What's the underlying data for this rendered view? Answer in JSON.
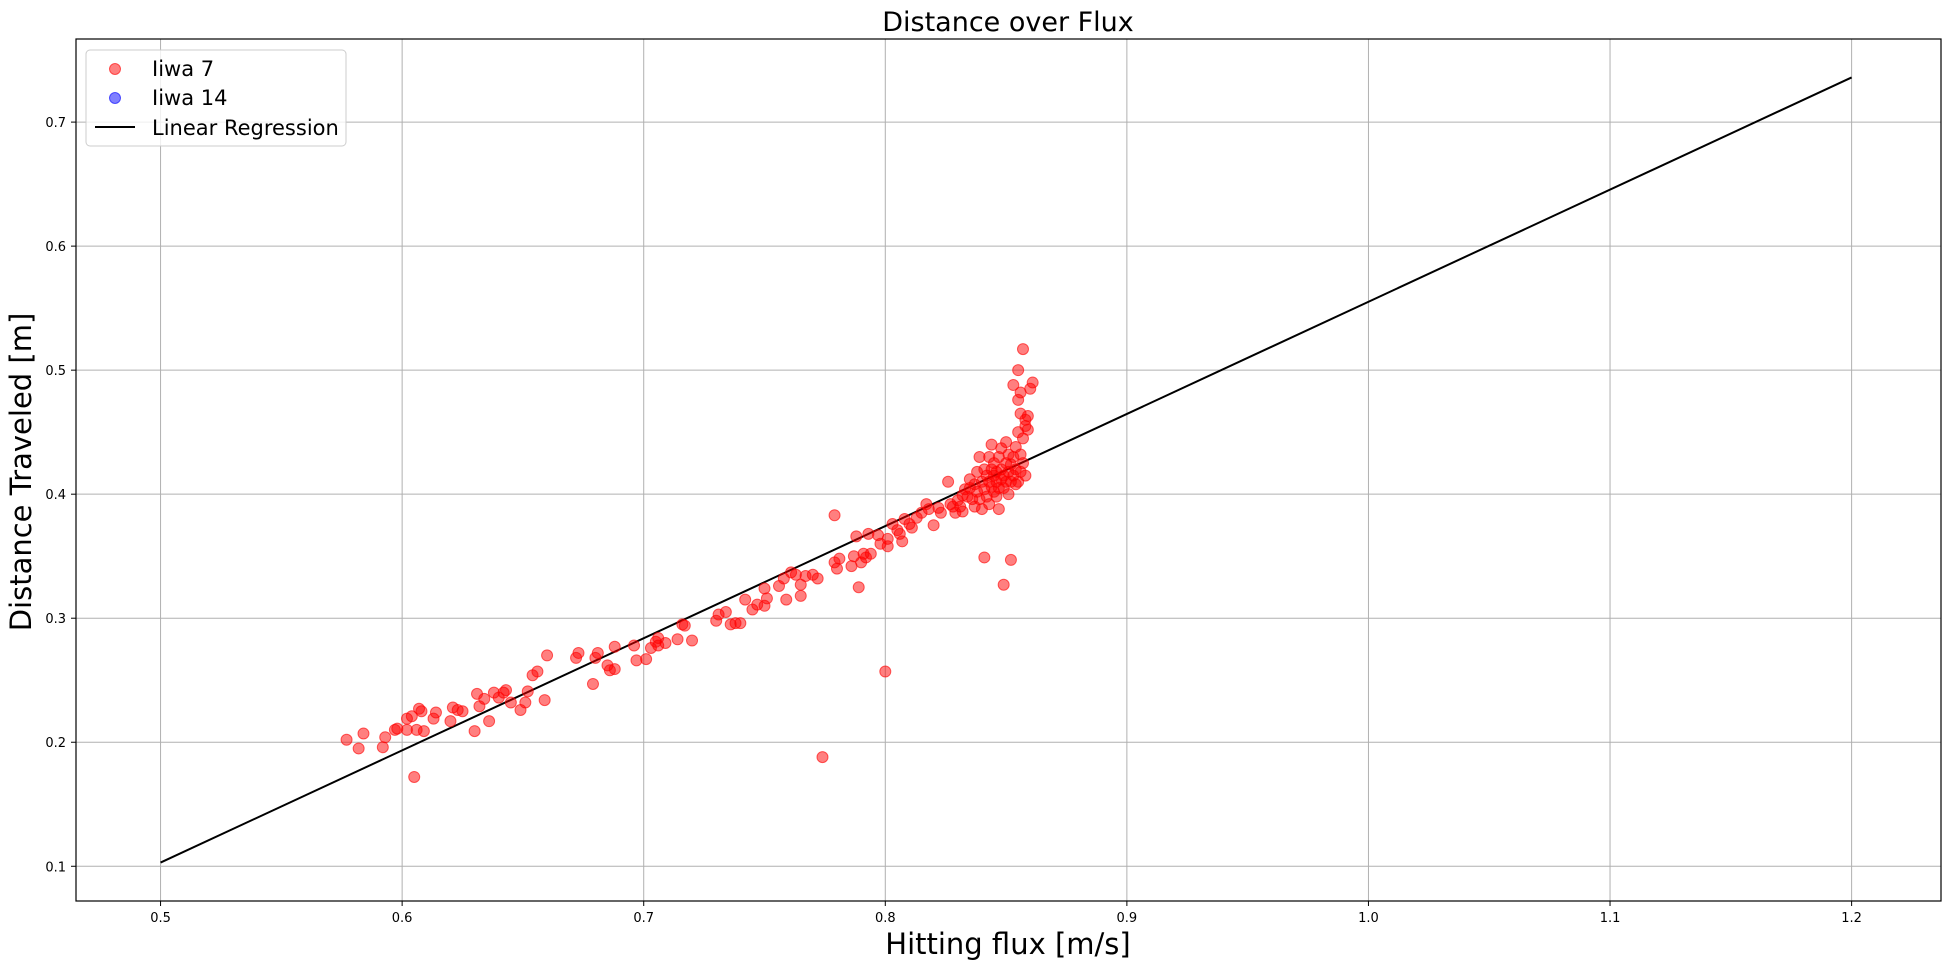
{
  "chart_data": {
    "type": "scatter",
    "title": "Distance over Flux",
    "xlabel": "Hitting flux [m/s]",
    "ylabel": "Distance Traveled [m]",
    "xlim": [
      0.465,
      1.237
    ],
    "ylim": [
      0.072,
      0.767
    ],
    "xticks": [
      "0.5",
      "0.6",
      "0.7",
      "0.8",
      "0.9",
      "1.0",
      "1.1",
      "1.2"
    ],
    "yticks": [
      "0.1",
      "0.2",
      "0.3",
      "0.4",
      "0.5",
      "0.6",
      "0.7"
    ],
    "grid": true,
    "legend_position": "top-left",
    "legend": [
      {
        "label": "Iiwa 7",
        "kind": "marker",
        "color": "#ff0000"
      },
      {
        "label": "Iiwa 14",
        "kind": "marker",
        "color": "#0000ff"
      },
      {
        "label": "Linear Regression",
        "kind": "line",
        "color": "#000000"
      }
    ],
    "series": [
      {
        "name": "Iiwa 7",
        "color": "#ff0000",
        "points": [
          [
            0.577,
            0.202
          ],
          [
            0.582,
            0.195
          ],
          [
            0.584,
            0.207
          ],
          [
            0.592,
            0.196
          ],
          [
            0.593,
            0.204
          ],
          [
            0.597,
            0.21
          ],
          [
            0.598,
            0.211
          ],
          [
            0.602,
            0.21
          ],
          [
            0.602,
            0.219
          ],
          [
            0.604,
            0.221
          ],
          [
            0.605,
            0.172
          ],
          [
            0.606,
            0.21
          ],
          [
            0.607,
            0.227
          ],
          [
            0.608,
            0.225
          ],
          [
            0.609,
            0.209
          ],
          [
            0.613,
            0.219
          ],
          [
            0.614,
            0.224
          ],
          [
            0.62,
            0.217
          ],
          [
            0.621,
            0.228
          ],
          [
            0.623,
            0.226
          ],
          [
            0.625,
            0.225
          ],
          [
            0.63,
            0.209
          ],
          [
            0.631,
            0.239
          ],
          [
            0.632,
            0.229
          ],
          [
            0.634,
            0.235
          ],
          [
            0.636,
            0.217
          ],
          [
            0.638,
            0.24
          ],
          [
            0.64,
            0.236
          ],
          [
            0.642,
            0.24
          ],
          [
            0.643,
            0.242
          ],
          [
            0.645,
            0.232
          ],
          [
            0.649,
            0.226
          ],
          [
            0.651,
            0.232
          ],
          [
            0.652,
            0.241
          ],
          [
            0.654,
            0.254
          ],
          [
            0.656,
            0.257
          ],
          [
            0.659,
            0.234
          ],
          [
            0.66,
            0.27
          ],
          [
            0.672,
            0.268
          ],
          [
            0.673,
            0.272
          ],
          [
            0.679,
            0.247
          ],
          [
            0.68,
            0.268
          ],
          [
            0.681,
            0.272
          ],
          [
            0.685,
            0.262
          ],
          [
            0.686,
            0.258
          ],
          [
            0.688,
            0.277
          ],
          [
            0.688,
            0.259
          ],
          [
            0.696,
            0.278
          ],
          [
            0.697,
            0.266
          ],
          [
            0.701,
            0.267
          ],
          [
            0.703,
            0.276
          ],
          [
            0.705,
            0.281
          ],
          [
            0.706,
            0.284
          ],
          [
            0.706,
            0.278
          ],
          [
            0.709,
            0.28
          ],
          [
            0.714,
            0.283
          ],
          [
            0.716,
            0.295
          ],
          [
            0.717,
            0.294
          ],
          [
            0.72,
            0.282
          ],
          [
            0.73,
            0.298
          ],
          [
            0.731,
            0.303
          ],
          [
            0.734,
            0.305
          ],
          [
            0.736,
            0.295
          ],
          [
            0.738,
            0.296
          ],
          [
            0.74,
            0.296
          ],
          [
            0.742,
            0.315
          ],
          [
            0.745,
            0.307
          ],
          [
            0.747,
            0.311
          ],
          [
            0.75,
            0.31
          ],
          [
            0.75,
            0.324
          ],
          [
            0.751,
            0.316
          ],
          [
            0.756,
            0.326
          ],
          [
            0.758,
            0.332
          ],
          [
            0.759,
            0.315
          ],
          [
            0.761,
            0.337
          ],
          [
            0.763,
            0.335
          ],
          [
            0.765,
            0.318
          ],
          [
            0.765,
            0.327
          ],
          [
            0.767,
            0.334
          ],
          [
            0.77,
            0.335
          ],
          [
            0.772,
            0.332
          ],
          [
            0.774,
            0.188
          ],
          [
            0.779,
            0.383
          ],
          [
            0.779,
            0.345
          ],
          [
            0.78,
            0.34
          ],
          [
            0.781,
            0.348
          ],
          [
            0.786,
            0.342
          ],
          [
            0.787,
            0.35
          ],
          [
            0.788,
            0.366
          ],
          [
            0.789,
            0.325
          ],
          [
            0.79,
            0.345
          ],
          [
            0.791,
            0.352
          ],
          [
            0.792,
            0.349
          ],
          [
            0.793,
            0.368
          ],
          [
            0.794,
            0.352
          ],
          [
            0.797,
            0.367
          ],
          [
            0.798,
            0.36
          ],
          [
            0.8,
            0.257
          ],
          [
            0.801,
            0.358
          ],
          [
            0.801,
            0.364
          ],
          [
            0.803,
            0.376
          ],
          [
            0.805,
            0.371
          ],
          [
            0.806,
            0.368
          ],
          [
            0.807,
            0.362
          ],
          [
            0.808,
            0.38
          ],
          [
            0.81,
            0.376
          ],
          [
            0.811,
            0.373
          ],
          [
            0.813,
            0.381
          ],
          [
            0.815,
            0.385
          ],
          [
            0.817,
            0.392
          ],
          [
            0.818,
            0.388
          ],
          [
            0.82,
            0.375
          ],
          [
            0.822,
            0.389
          ],
          [
            0.823,
            0.385
          ],
          [
            0.826,
            0.41
          ],
          [
            0.827,
            0.392
          ],
          [
            0.828,
            0.39
          ],
          [
            0.829,
            0.385
          ],
          [
            0.83,
            0.395
          ],
          [
            0.831,
            0.39
          ],
          [
            0.832,
            0.386
          ],
          [
            0.832,
            0.399
          ],
          [
            0.833,
            0.404
          ],
          [
            0.834,
            0.398
          ],
          [
            0.835,
            0.405
          ],
          [
            0.835,
            0.412
          ],
          [
            0.836,
            0.396
          ],
          [
            0.837,
            0.39
          ],
          [
            0.837,
            0.408
          ],
          [
            0.838,
            0.402
          ],
          [
            0.838,
            0.418
          ],
          [
            0.839,
            0.396
          ],
          [
            0.839,
            0.43
          ],
          [
            0.84,
            0.41
          ],
          [
            0.84,
            0.388
          ],
          [
            0.841,
            0.404
          ],
          [
            0.841,
            0.42
          ],
          [
            0.841,
            0.349
          ],
          [
            0.842,
            0.398
          ],
          [
            0.842,
            0.415
          ],
          [
            0.843,
            0.41
          ],
          [
            0.843,
            0.43
          ],
          [
            0.843,
            0.392
          ],
          [
            0.844,
            0.406
          ],
          [
            0.844,
            0.42
          ],
          [
            0.844,
            0.44
          ],
          [
            0.845,
            0.402
          ],
          [
            0.845,
            0.415
          ],
          [
            0.845,
            0.425
          ],
          [
            0.846,
            0.398
          ],
          [
            0.846,
            0.41
          ],
          [
            0.846,
            0.418
          ],
          [
            0.847,
            0.405
          ],
          [
            0.847,
            0.43
          ],
          [
            0.847,
            0.388
          ],
          [
            0.848,
            0.412
          ],
          [
            0.848,
            0.42
          ],
          [
            0.848,
            0.437
          ],
          [
            0.849,
            0.405
          ],
          [
            0.849,
            0.415
          ],
          [
            0.849,
            0.327
          ],
          [
            0.85,
            0.41
          ],
          [
            0.85,
            0.425
          ],
          [
            0.85,
            0.442
          ],
          [
            0.851,
            0.4
          ],
          [
            0.851,
            0.418
          ],
          [
            0.851,
            0.432
          ],
          [
            0.852,
            0.41
          ],
          [
            0.852,
            0.424
          ],
          [
            0.852,
            0.347
          ],
          [
            0.853,
            0.415
          ],
          [
            0.853,
            0.43
          ],
          [
            0.853,
            0.488
          ],
          [
            0.854,
            0.408
          ],
          [
            0.854,
            0.42
          ],
          [
            0.854,
            0.438
          ],
          [
            0.855,
            0.41
          ],
          [
            0.855,
            0.45
          ],
          [
            0.855,
            0.476
          ],
          [
            0.855,
            0.5
          ],
          [
            0.856,
            0.418
          ],
          [
            0.856,
            0.432
          ],
          [
            0.856,
            0.465
          ],
          [
            0.856,
            0.482
          ],
          [
            0.857,
            0.425
          ],
          [
            0.857,
            0.445
          ],
          [
            0.857,
            0.517
          ],
          [
            0.858,
            0.46
          ],
          [
            0.858,
            0.415
          ],
          [
            0.858,
            0.455
          ],
          [
            0.859,
            0.463
          ],
          [
            0.859,
            0.452
          ],
          [
            0.86,
            0.485
          ],
          [
            0.861,
            0.49
          ]
        ]
      },
      {
        "name": "Iiwa 14",
        "color": "#0000ff",
        "points": []
      }
    ],
    "regression": {
      "name": "Linear Regression",
      "color": "#000000",
      "x": [
        0.5,
        1.2
      ],
      "y": [
        0.103,
        0.736
      ]
    }
  }
}
